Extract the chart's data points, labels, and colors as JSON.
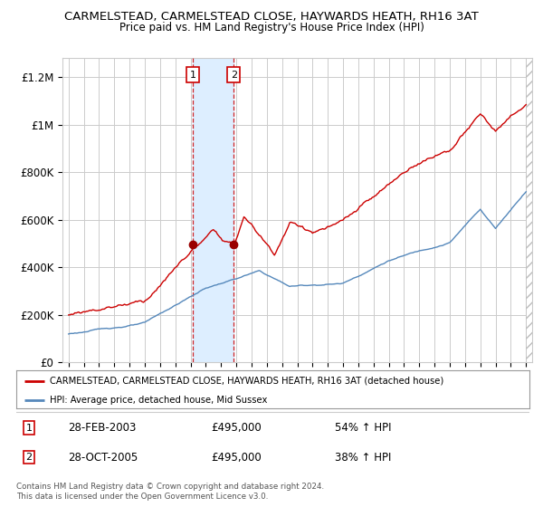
{
  "title": "CARMELSTEAD, CARMELSTEAD CLOSE, HAYWARDS HEATH, RH16 3AT",
  "subtitle": "Price paid vs. HM Land Registry's House Price Index (HPI)",
  "ylabel_ticks": [
    "£0",
    "£200K",
    "£400K",
    "£600K",
    "£800K",
    "£1M",
    "£1.2M"
  ],
  "ytick_values": [
    0,
    200000,
    400000,
    600000,
    800000,
    1000000,
    1200000
  ],
  "ylim": [
    0,
    1280000
  ],
  "xlim_start": 1994.6,
  "xlim_end": 2025.4,
  "sale1_date": 2003.15,
  "sale1_price": 495000,
  "sale1_label": "1",
  "sale1_hpi_pct": "54% ↑ HPI",
  "sale1_date_str": "28-FEB-2003",
  "sale2_date": 2005.83,
  "sale2_price": 495000,
  "sale2_label": "2",
  "sale2_hpi_pct": "38% ↑ HPI",
  "sale2_date_str": "28-OCT-2005",
  "red_line_color": "#cc0000",
  "blue_line_color": "#5588bb",
  "highlight_color": "#ddeeff",
  "grid_color": "#cccccc",
  "legend_red_label": "CARMELSTEAD, CARMELSTEAD CLOSE, HAYWARDS HEATH, RH16 3AT (detached house)",
  "legend_blue_label": "HPI: Average price, detached house, Mid Sussex",
  "footer_text": "Contains HM Land Registry data © Crown copyright and database right 2024.\nThis data is licensed under the Open Government Licence v3.0.",
  "bg_color": "#ffffff",
  "plot_bg_color": "#ffffff"
}
